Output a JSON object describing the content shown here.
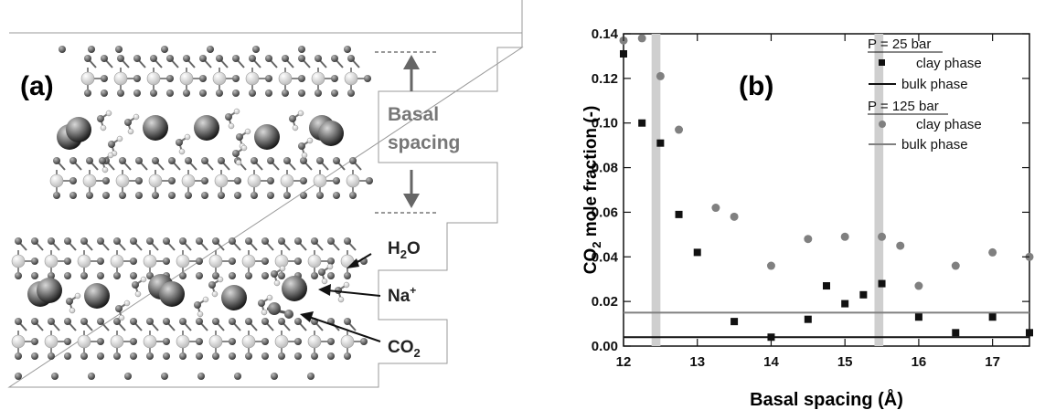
{
  "left_panel": {
    "label": "(a)",
    "basal_line1": "Basal",
    "basal_line2": "spacing",
    "h2o_main": "H",
    "h2o_sub": "2",
    "h2o_end": "O",
    "na_main": "Na",
    "na_sup": "+",
    "co2_main": "CO",
    "co2_sub": "2"
  },
  "chart_data": {
    "type": "scatter",
    "panel_label": "(b)",
    "xlabel": "Basal spacing (Å)",
    "ylabel_parts": [
      "CO",
      "2",
      " mole fraction (-)"
    ],
    "xlim": [
      12,
      17.5
    ],
    "ylim": [
      0,
      0.14
    ],
    "xticks": [
      "12",
      "13",
      "14",
      "15",
      "16",
      "17"
    ],
    "xtick_values": [
      12,
      13,
      14,
      15,
      16,
      17
    ],
    "yticks": [
      "0.00",
      "0.02",
      "0.04",
      "0.06",
      "0.08",
      "0.10",
      "0.12",
      "0.14"
    ],
    "ytick_values": [
      0,
      0.02,
      0.04,
      0.06,
      0.08,
      0.1,
      0.12,
      0.14
    ],
    "shaded_bands": [
      [
        12.38,
        12.5
      ],
      [
        15.4,
        15.52
      ]
    ],
    "groups": [
      {
        "heading": "P = 25 bar",
        "clay_label": "clay phase",
        "bulk_label": "bulk phase",
        "color": "#111111",
        "marker": "square",
        "bulk_value": 0.004,
        "points": [
          [
            12.0,
            0.131
          ],
          [
            12.25,
            0.1
          ],
          [
            12.5,
            0.091
          ],
          [
            12.75,
            0.059
          ],
          [
            13.0,
            0.042
          ],
          [
            13.5,
            0.011
          ],
          [
            14.0,
            0.004
          ],
          [
            14.5,
            0.012
          ],
          [
            14.75,
            0.027
          ],
          [
            15.0,
            0.019
          ],
          [
            15.25,
            0.023
          ],
          [
            15.5,
            0.028
          ],
          [
            16.0,
            0.013
          ],
          [
            16.5,
            0.006
          ],
          [
            17.0,
            0.013
          ],
          [
            17.5,
            0.006
          ]
        ]
      },
      {
        "heading": "P = 125 bar",
        "clay_label": "clay phase",
        "bulk_label": "bulk phase",
        "color": "#808080",
        "marker": "circle",
        "bulk_value": 0.015,
        "points": [
          [
            12.0,
            0.137
          ],
          [
            12.25,
            0.138
          ],
          [
            12.5,
            0.121
          ],
          [
            12.75,
            0.097
          ],
          [
            13.25,
            0.062
          ],
          [
            13.5,
            0.058
          ],
          [
            14.0,
            0.036
          ],
          [
            14.5,
            0.048
          ],
          [
            15.0,
            0.049
          ],
          [
            15.5,
            0.049
          ],
          [
            15.75,
            0.045
          ],
          [
            16.0,
            0.027
          ],
          [
            16.5,
            0.036
          ],
          [
            17.0,
            0.042
          ],
          [
            17.5,
            0.04
          ]
        ]
      }
    ]
  }
}
